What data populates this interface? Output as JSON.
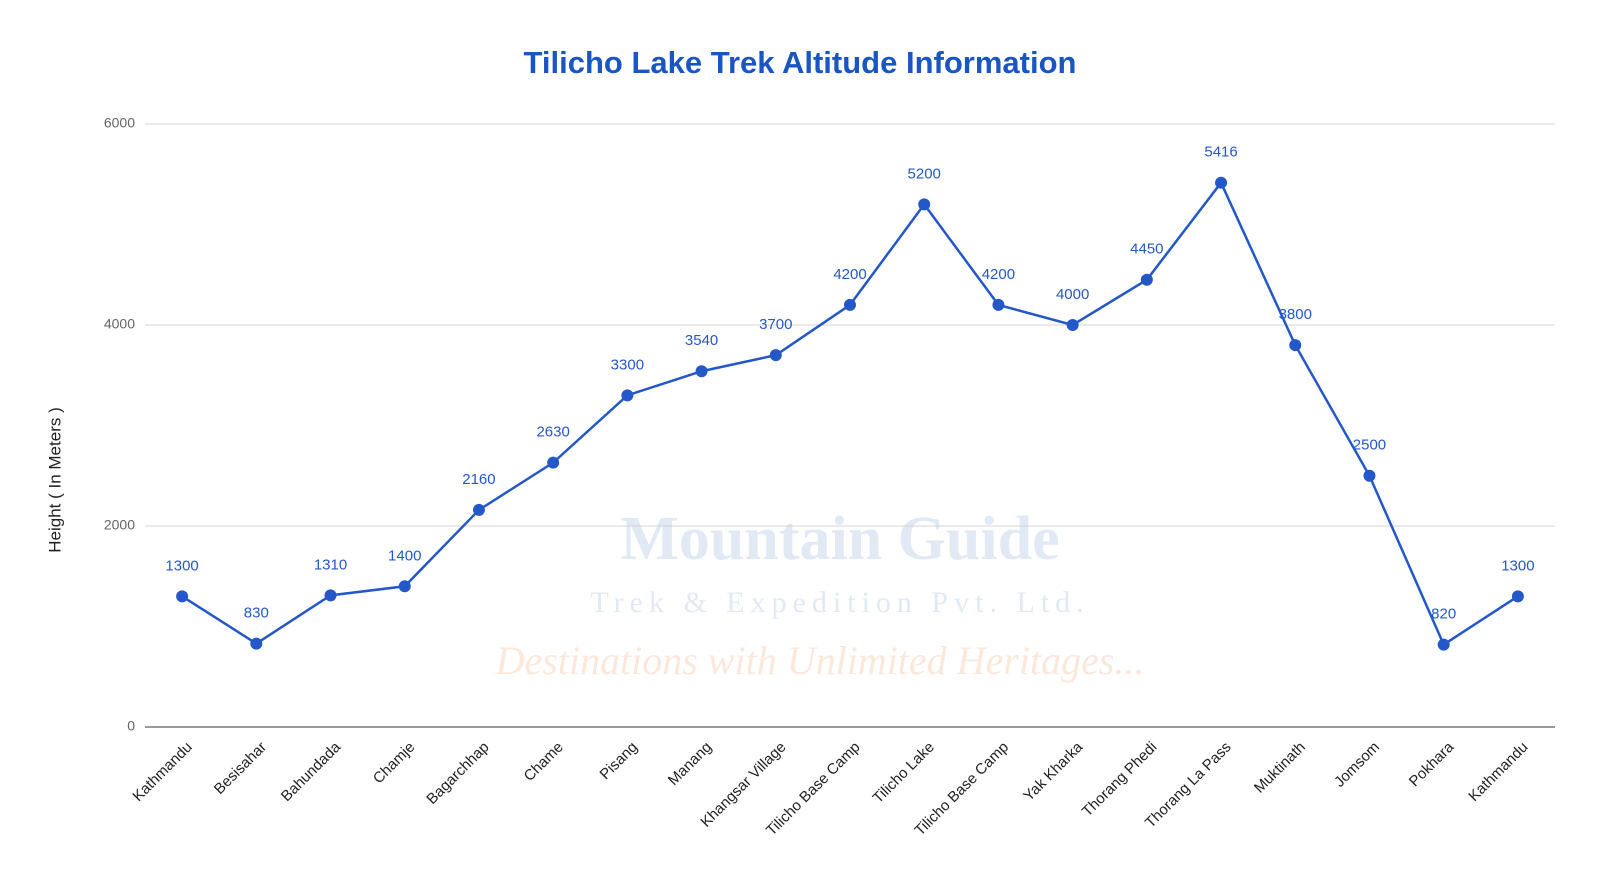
{
  "chart_data": {
    "type": "line",
    "title": "Tilicho Lake Trek Altitude Information",
    "y_label": "Height ( In Meters )",
    "categories": [
      "Kathmandu",
      "Besisahar",
      "Bahundada",
      "Chamje",
      "Bagarchhap",
      "Chame",
      "Pisang",
      "Manang",
      "Khangsar Village",
      "Tilicho Base Camp",
      "Tilicho Lake",
      "Tilicho Base Camp",
      "Yak Kharka",
      "Thorang Phedi",
      "Thorang La Pass",
      "Muktinath",
      "Jomsom",
      "Pokhara",
      "Kathmandu"
    ],
    "values": [
      1300,
      830,
      1310,
      1400,
      2160,
      2630,
      3300,
      3540,
      3700,
      4200,
      5200,
      4200,
      4000,
      4450,
      5416,
      3800,
      2500,
      820,
      1300
    ],
    "color": "#2458c9",
    "ylim": [
      0,
      6000
    ],
    "yticks": [
      0,
      2000,
      4000,
      6000
    ],
    "grid": true,
    "watermark": [
      "Mountain Guide",
      "Trek & Expedition Pvt. Ltd.",
      "Destinations with Unlimited Heritages..."
    ]
  }
}
